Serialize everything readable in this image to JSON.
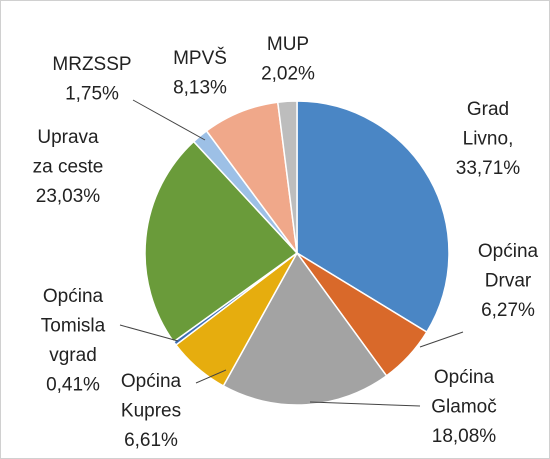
{
  "chart_data": {
    "type": "pie",
    "categories": [
      [
        "Grad",
        "Livno,"
      ],
      [
        "Općina",
        "Drvar"
      ],
      [
        "Općina",
        "Glamoč"
      ],
      [
        "Općina",
        "Kupres"
      ],
      [
        "Općina",
        "Tomisla",
        "vgrad"
      ],
      [
        "Uprava",
        "za ceste"
      ],
      [
        "MRZSSP"
      ],
      [
        "MPVŠ"
      ],
      [
        "MUP"
      ]
    ],
    "values": [
      33.71,
      6.27,
      18.08,
      6.61,
      0.41,
      23.03,
      1.75,
      8.13,
      2.02
    ],
    "value_labels": [
      "33,71%",
      "6,27%",
      "18,08%",
      "6,61%",
      "0,41%",
      "23,03%",
      "1,75%",
      "8,13%",
      "2,02%"
    ],
    "colors": [
      "#4a86c5",
      "#d9692a",
      "#a3a3a3",
      "#e6ad0e",
      "#3e6fb5",
      "#6a9b3a",
      "#9dc0e6",
      "#f0a88a",
      "#bdbdbd"
    ]
  }
}
